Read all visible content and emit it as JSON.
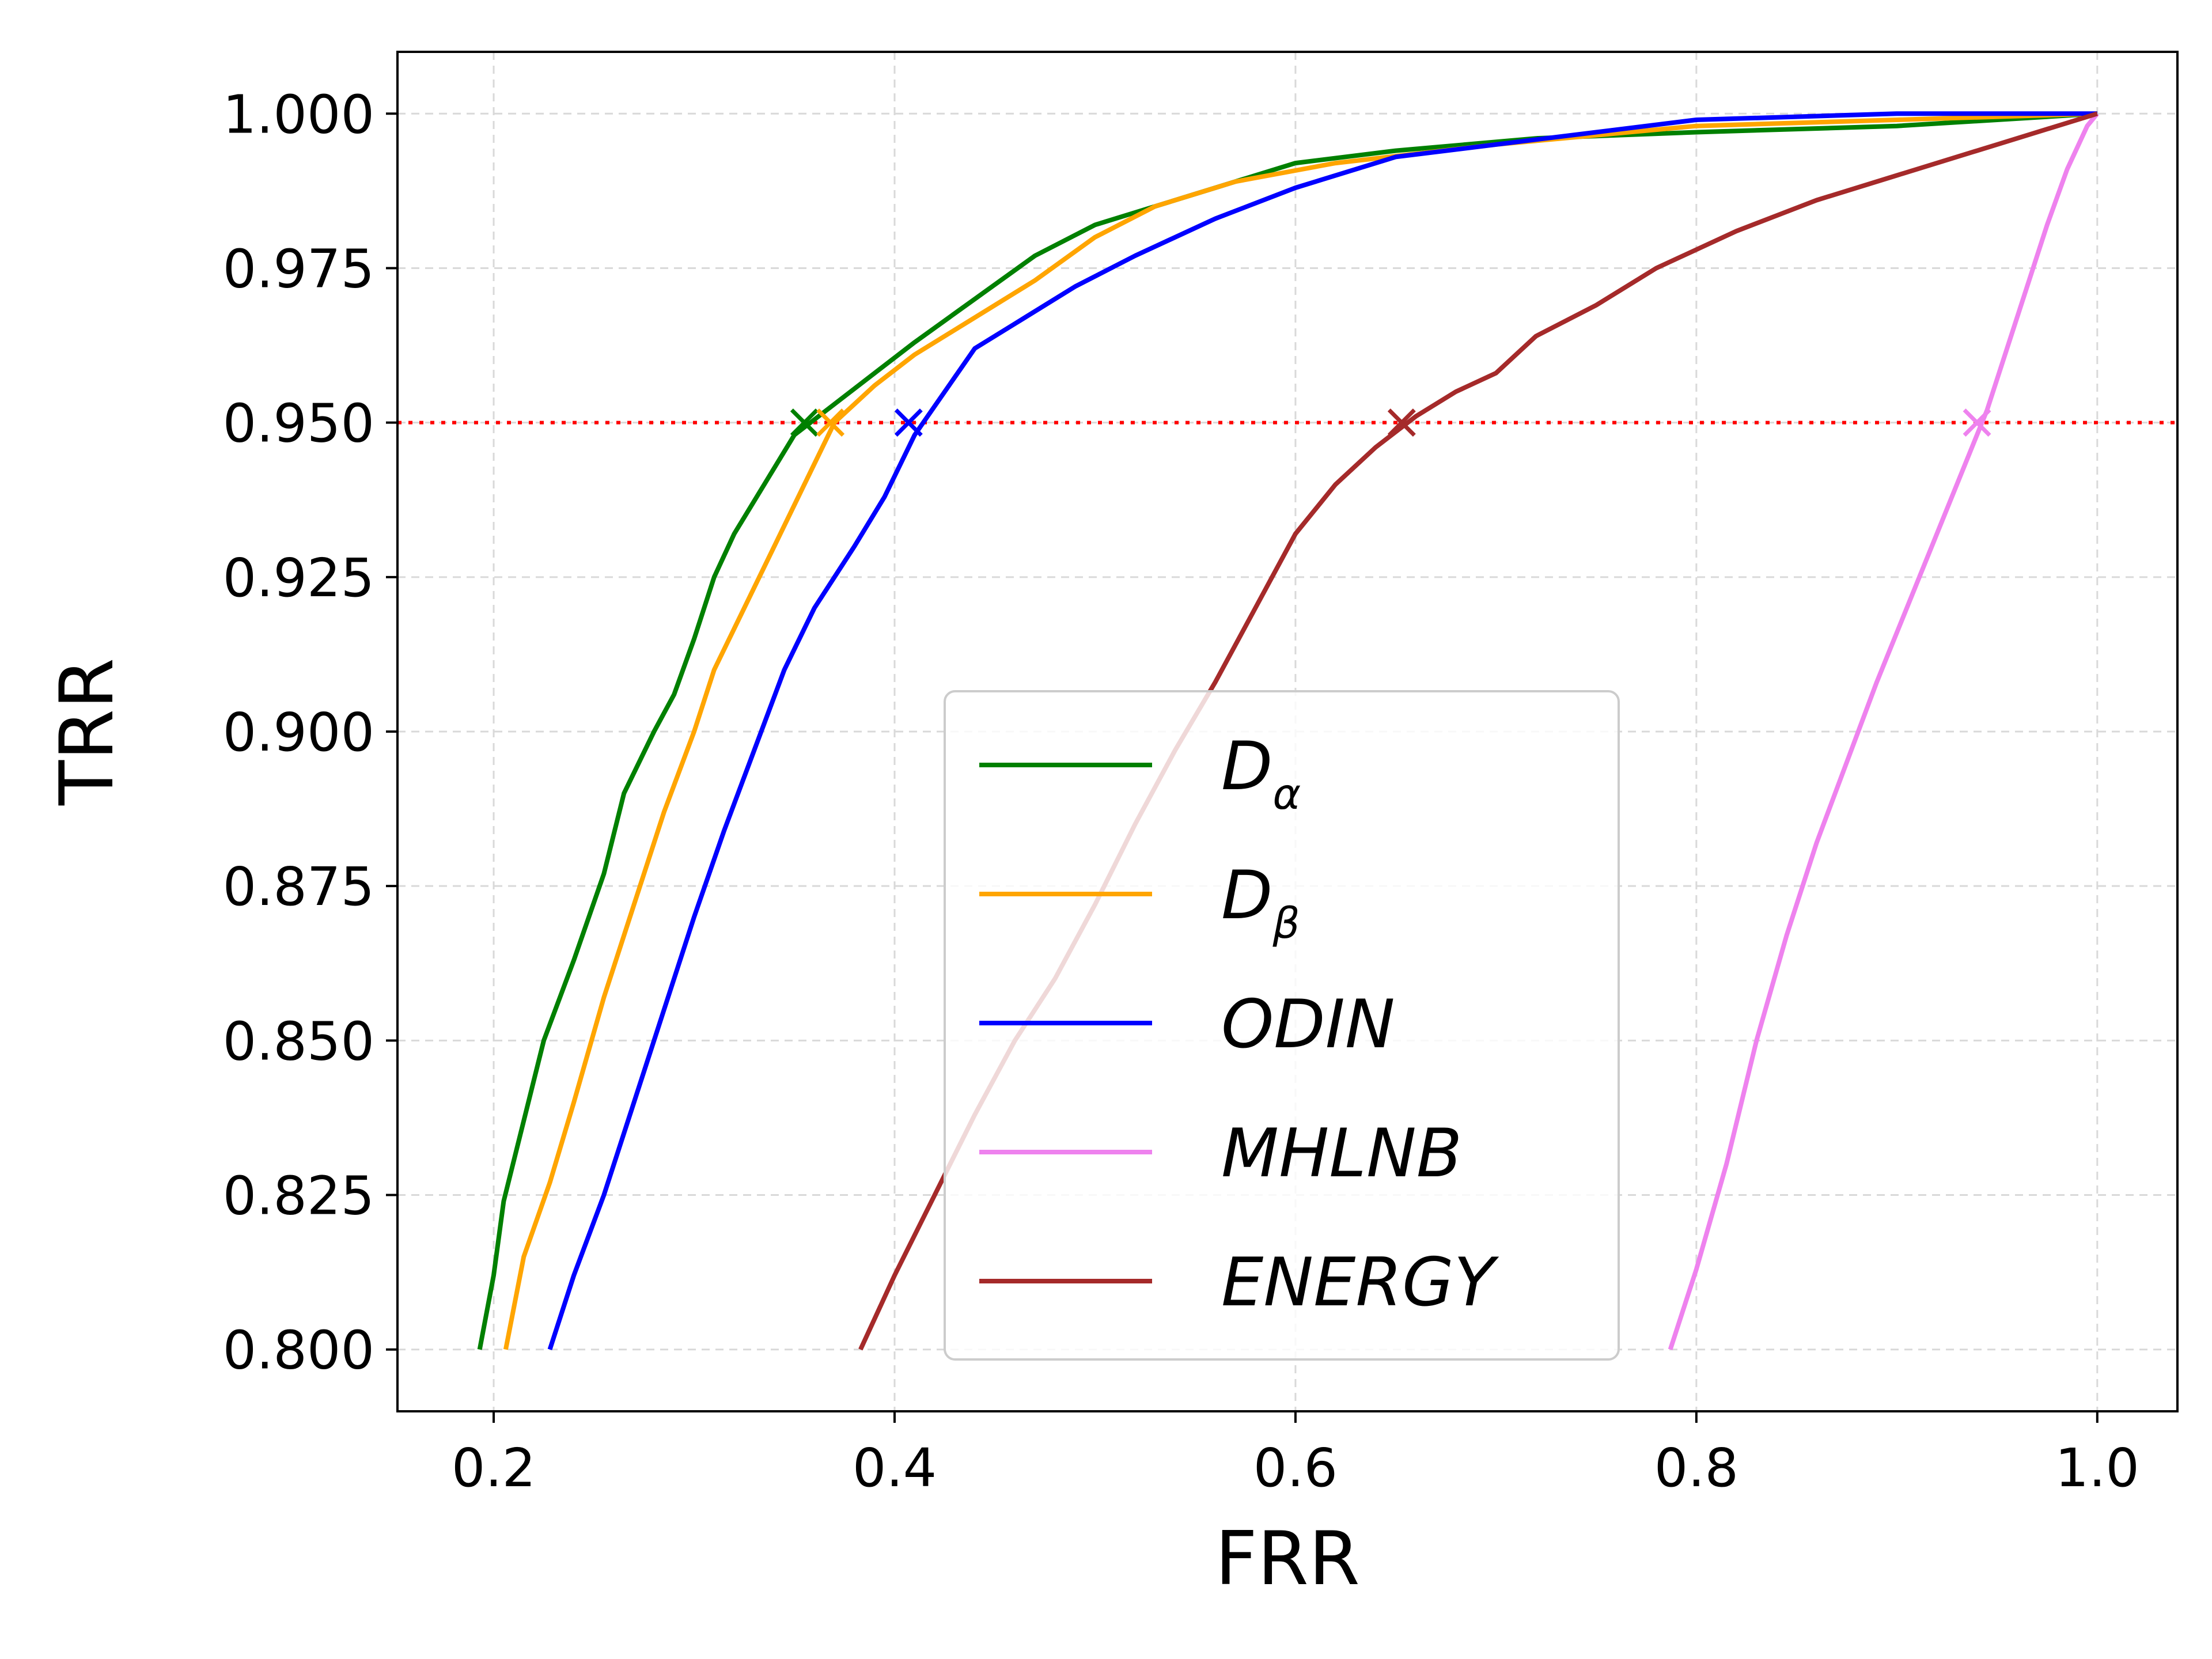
{
  "chart_data": {
    "type": "line",
    "title": "",
    "xlabel": "FRR",
    "ylabel": "TRR",
    "xlim": [
      0.152,
      1.04
    ],
    "ylim": [
      0.79,
      1.01
    ],
    "grid": true,
    "legend_position": "center-right",
    "x_ticks": [
      {
        "value": 0.2,
        "label": "0.2"
      },
      {
        "value": 0.4,
        "label": "0.4"
      },
      {
        "value": 0.6,
        "label": "0.6"
      },
      {
        "value": 0.8,
        "label": "0.8"
      },
      {
        "value": 1.0,
        "label": "1.0"
      }
    ],
    "y_ticks": [
      {
        "value": 0.8,
        "label": "0.800"
      },
      {
        "value": 0.825,
        "label": "0.825"
      },
      {
        "value": 0.85,
        "label": "0.850"
      },
      {
        "value": 0.875,
        "label": "0.875"
      },
      {
        "value": 0.9,
        "label": "0.900"
      },
      {
        "value": 0.925,
        "label": "0.925"
      },
      {
        "value": 0.95,
        "label": "0.950"
      },
      {
        "value": 0.975,
        "label": "0.975"
      },
      {
        "value": 1.0,
        "label": "1.000"
      }
    ],
    "reference_line": {
      "y": 0.95,
      "color": "#ff0000",
      "style": "dotted"
    },
    "series": [
      {
        "name": "D",
        "subscript": "α",
        "color": "#008000",
        "marker": {
          "x": 0.355,
          "y": 0.95
        },
        "points": [
          [
            0.193,
            0.8
          ],
          [
            0.2,
            0.812
          ],
          [
            0.205,
            0.824
          ],
          [
            0.215,
            0.837
          ],
          [
            0.225,
            0.85
          ],
          [
            0.24,
            0.863
          ],
          [
            0.255,
            0.877
          ],
          [
            0.265,
            0.89
          ],
          [
            0.28,
            0.9
          ],
          [
            0.29,
            0.906
          ],
          [
            0.3,
            0.915
          ],
          [
            0.31,
            0.925
          ],
          [
            0.32,
            0.932
          ],
          [
            0.335,
            0.94
          ],
          [
            0.35,
            0.948
          ],
          [
            0.37,
            0.953
          ],
          [
            0.39,
            0.958
          ],
          [
            0.41,
            0.963
          ],
          [
            0.44,
            0.97
          ],
          [
            0.47,
            0.977
          ],
          [
            0.5,
            0.982
          ],
          [
            0.53,
            0.985
          ],
          [
            0.56,
            0.988
          ],
          [
            0.6,
            0.992
          ],
          [
            0.65,
            0.994
          ],
          [
            0.72,
            0.996
          ],
          [
            0.8,
            0.997
          ],
          [
            0.9,
            0.998
          ],
          [
            1.0,
            1.0
          ]
        ]
      },
      {
        "name": "D",
        "subscript": "β",
        "color": "#ffa500",
        "marker": {
          "x": 0.368,
          "y": 0.95
        },
        "points": [
          [
            0.206,
            0.8
          ],
          [
            0.215,
            0.815
          ],
          [
            0.228,
            0.827
          ],
          [
            0.24,
            0.84
          ],
          [
            0.255,
            0.857
          ],
          [
            0.27,
            0.872
          ],
          [
            0.285,
            0.887
          ],
          [
            0.3,
            0.9
          ],
          [
            0.31,
            0.91
          ],
          [
            0.325,
            0.92
          ],
          [
            0.34,
            0.93
          ],
          [
            0.355,
            0.94
          ],
          [
            0.37,
            0.95
          ],
          [
            0.39,
            0.956
          ],
          [
            0.41,
            0.961
          ],
          [
            0.44,
            0.967
          ],
          [
            0.47,
            0.973
          ],
          [
            0.5,
            0.98
          ],
          [
            0.53,
            0.985
          ],
          [
            0.57,
            0.989
          ],
          [
            0.62,
            0.992
          ],
          [
            0.7,
            0.995
          ],
          [
            0.8,
            0.998
          ],
          [
            0.9,
            0.999
          ],
          [
            1.0,
            1.0
          ]
        ]
      },
      {
        "name": "ODIN",
        "subscript": "",
        "color": "#0000ff",
        "marker": {
          "x": 0.407,
          "y": 0.95
        },
        "points": [
          [
            0.228,
            0.8
          ],
          [
            0.24,
            0.812
          ],
          [
            0.255,
            0.825
          ],
          [
            0.27,
            0.84
          ],
          [
            0.285,
            0.855
          ],
          [
            0.3,
            0.87
          ],
          [
            0.315,
            0.884
          ],
          [
            0.33,
            0.897
          ],
          [
            0.345,
            0.91
          ],
          [
            0.36,
            0.92
          ],
          [
            0.38,
            0.93
          ],
          [
            0.395,
            0.938
          ],
          [
            0.41,
            0.948
          ],
          [
            0.425,
            0.955
          ],
          [
            0.44,
            0.962
          ],
          [
            0.46,
            0.966
          ],
          [
            0.49,
            0.972
          ],
          [
            0.52,
            0.977
          ],
          [
            0.56,
            0.983
          ],
          [
            0.6,
            0.988
          ],
          [
            0.65,
            0.993
          ],
          [
            0.7,
            0.995
          ],
          [
            0.75,
            0.997
          ],
          [
            0.8,
            0.999
          ],
          [
            0.9,
            1.0
          ],
          [
            1.0,
            1.0
          ]
        ]
      },
      {
        "name": "MHLNB",
        "subscript": "",
        "color": "#ee82ee",
        "marker": {
          "x": 0.94,
          "y": 0.95
        },
        "points": [
          [
            0.787,
            0.8
          ],
          [
            0.8,
            0.813
          ],
          [
            0.815,
            0.83
          ],
          [
            0.83,
            0.85
          ],
          [
            0.845,
            0.867
          ],
          [
            0.86,
            0.882
          ],
          [
            0.875,
            0.895
          ],
          [
            0.89,
            0.908
          ],
          [
            0.905,
            0.92
          ],
          [
            0.92,
            0.932
          ],
          [
            0.935,
            0.944
          ],
          [
            0.945,
            0.952
          ],
          [
            0.955,
            0.962
          ],
          [
            0.965,
            0.972
          ],
          [
            0.975,
            0.982
          ],
          [
            0.985,
            0.991
          ],
          [
            0.995,
            0.998
          ],
          [
            1.0,
            1.0
          ]
        ]
      },
      {
        "name": "ENERGY",
        "subscript": "",
        "color": "#a52a2a",
        "marker": {
          "x": 0.653,
          "y": 0.95
        },
        "points": [
          [
            0.383,
            0.8
          ],
          [
            0.4,
            0.812
          ],
          [
            0.42,
            0.825
          ],
          [
            0.44,
            0.838
          ],
          [
            0.46,
            0.85
          ],
          [
            0.48,
            0.86
          ],
          [
            0.5,
            0.872
          ],
          [
            0.52,
            0.885
          ],
          [
            0.54,
            0.897
          ],
          [
            0.56,
            0.908
          ],
          [
            0.58,
            0.92
          ],
          [
            0.6,
            0.932
          ],
          [
            0.62,
            0.94
          ],
          [
            0.64,
            0.946
          ],
          [
            0.66,
            0.951
          ],
          [
            0.68,
            0.955
          ],
          [
            0.7,
            0.958
          ],
          [
            0.72,
            0.964
          ],
          [
            0.75,
            0.969
          ],
          [
            0.78,
            0.975
          ],
          [
            0.82,
            0.981
          ],
          [
            0.86,
            0.986
          ],
          [
            0.9,
            0.99
          ],
          [
            0.95,
            0.995
          ],
          [
            1.0,
            1.0
          ]
        ]
      }
    ]
  }
}
